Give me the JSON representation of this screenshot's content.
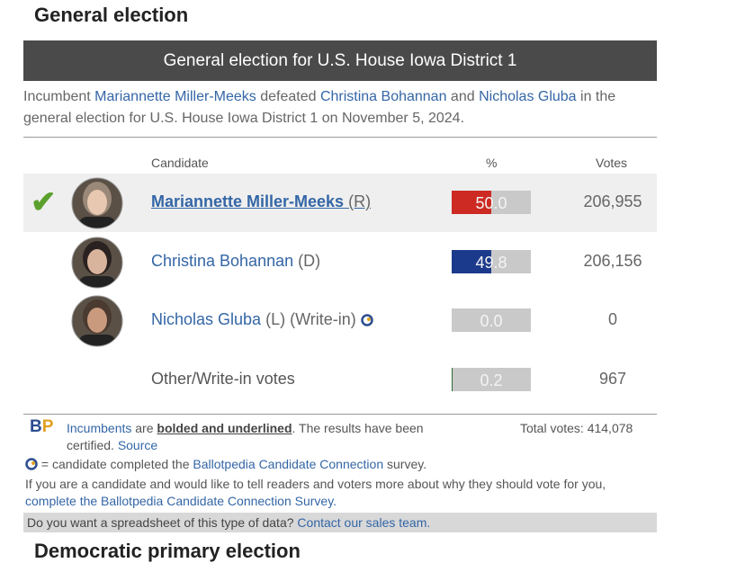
{
  "heading": "General election",
  "banner": "General election for U.S. House Iowa District 1",
  "summary": [
    "Incumbent ",
    "Mariannette Miller-Meeks",
    " defeated ",
    "Christina Bohannan",
    " and ",
    "Nicholas Gluba",
    " in the general election for U.S. House Iowa District 1 on November 5, 2024."
  ],
  "table": {
    "columns": [
      "Candidate",
      "%",
      "Votes"
    ],
    "rows": [
      {
        "name": "Mariannette Miller-Meeks",
        "party": "(R)",
        "percent": 50,
        "percent_label": "50.0",
        "votes": "206,955",
        "color": "#cc2a22"
      },
      {
        "name": "Christina Bohannan",
        "party": "(D)",
        "percent": 49.8,
        "votes": "206,156",
        "color": "#1c3a8c"
      },
      {
        "name": "Nicholas Gluba",
        "party": "(L) (Write-in)",
        "percent": 0,
        "percent_label": "0.0",
        "votes": "0",
        "color": "#888888"
      },
      {
        "name": "Other/Write-in votes",
        "percent": 0.2,
        "votes": "967",
        "color": "#2e6b2e"
      }
    ]
  },
  "footer": {
    "logo": "BP",
    "note": [
      "Incumbents",
      " are ",
      "bolded and underlined",
      ". The results have been certified. ",
      "Source"
    ],
    "total": "Total votes: 414,078",
    "connection": [
      " = candidate completed the ",
      "Ballotpedia Candidate Connection",
      " survey."
    ],
    "candidate": [
      "If you are a candidate and would like to tell readers and voters more about why they should vote for you, ",
      "complete the Ballotpedia Candidate Connection Survey."
    ],
    "sales": [
      "Do you want a spreadsheet of this type of data? ",
      "Contact our sales team."
    ]
  },
  "next_heading": "Democratic primary election"
}
